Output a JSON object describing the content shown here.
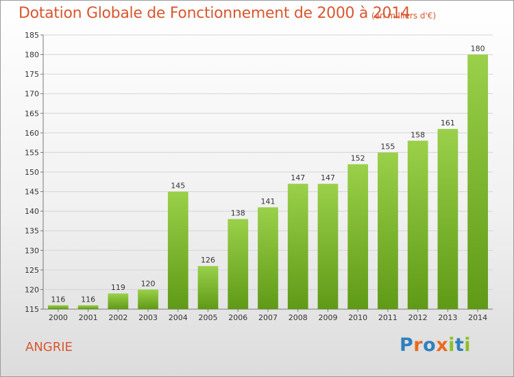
{
  "header": {
    "title": "Dotation Globale de Fonctionnement de 2000 à 2014",
    "unit": "(en milliers d'€)"
  },
  "footer": {
    "commune": "ANGRIE",
    "logo_text": "Proxiti"
  },
  "colors": {
    "accent": "#d9562f",
    "bar_light": "#9ad04a",
    "bar_dark": "#5f9a16"
  },
  "chart_data": {
    "type": "bar",
    "categories": [
      "2000",
      "2001",
      "2002",
      "2003",
      "2004",
      "2005",
      "2006",
      "2007",
      "2008",
      "2009",
      "2010",
      "2011",
      "2012",
      "2013",
      "2014"
    ],
    "values": [
      116,
      116,
      119,
      120,
      145,
      126,
      138,
      141,
      147,
      147,
      152,
      155,
      158,
      161,
      180
    ],
    "title": "Dotation Globale de Fonctionnement de 2000 à 2014",
    "ylabel": "",
    "xlabel": "",
    "ylim": [
      115,
      185
    ],
    "yticks": [
      115,
      120,
      125,
      130,
      135,
      140,
      145,
      150,
      155,
      160,
      165,
      170,
      175,
      180,
      185
    ],
    "grid": true,
    "legend": "none"
  }
}
